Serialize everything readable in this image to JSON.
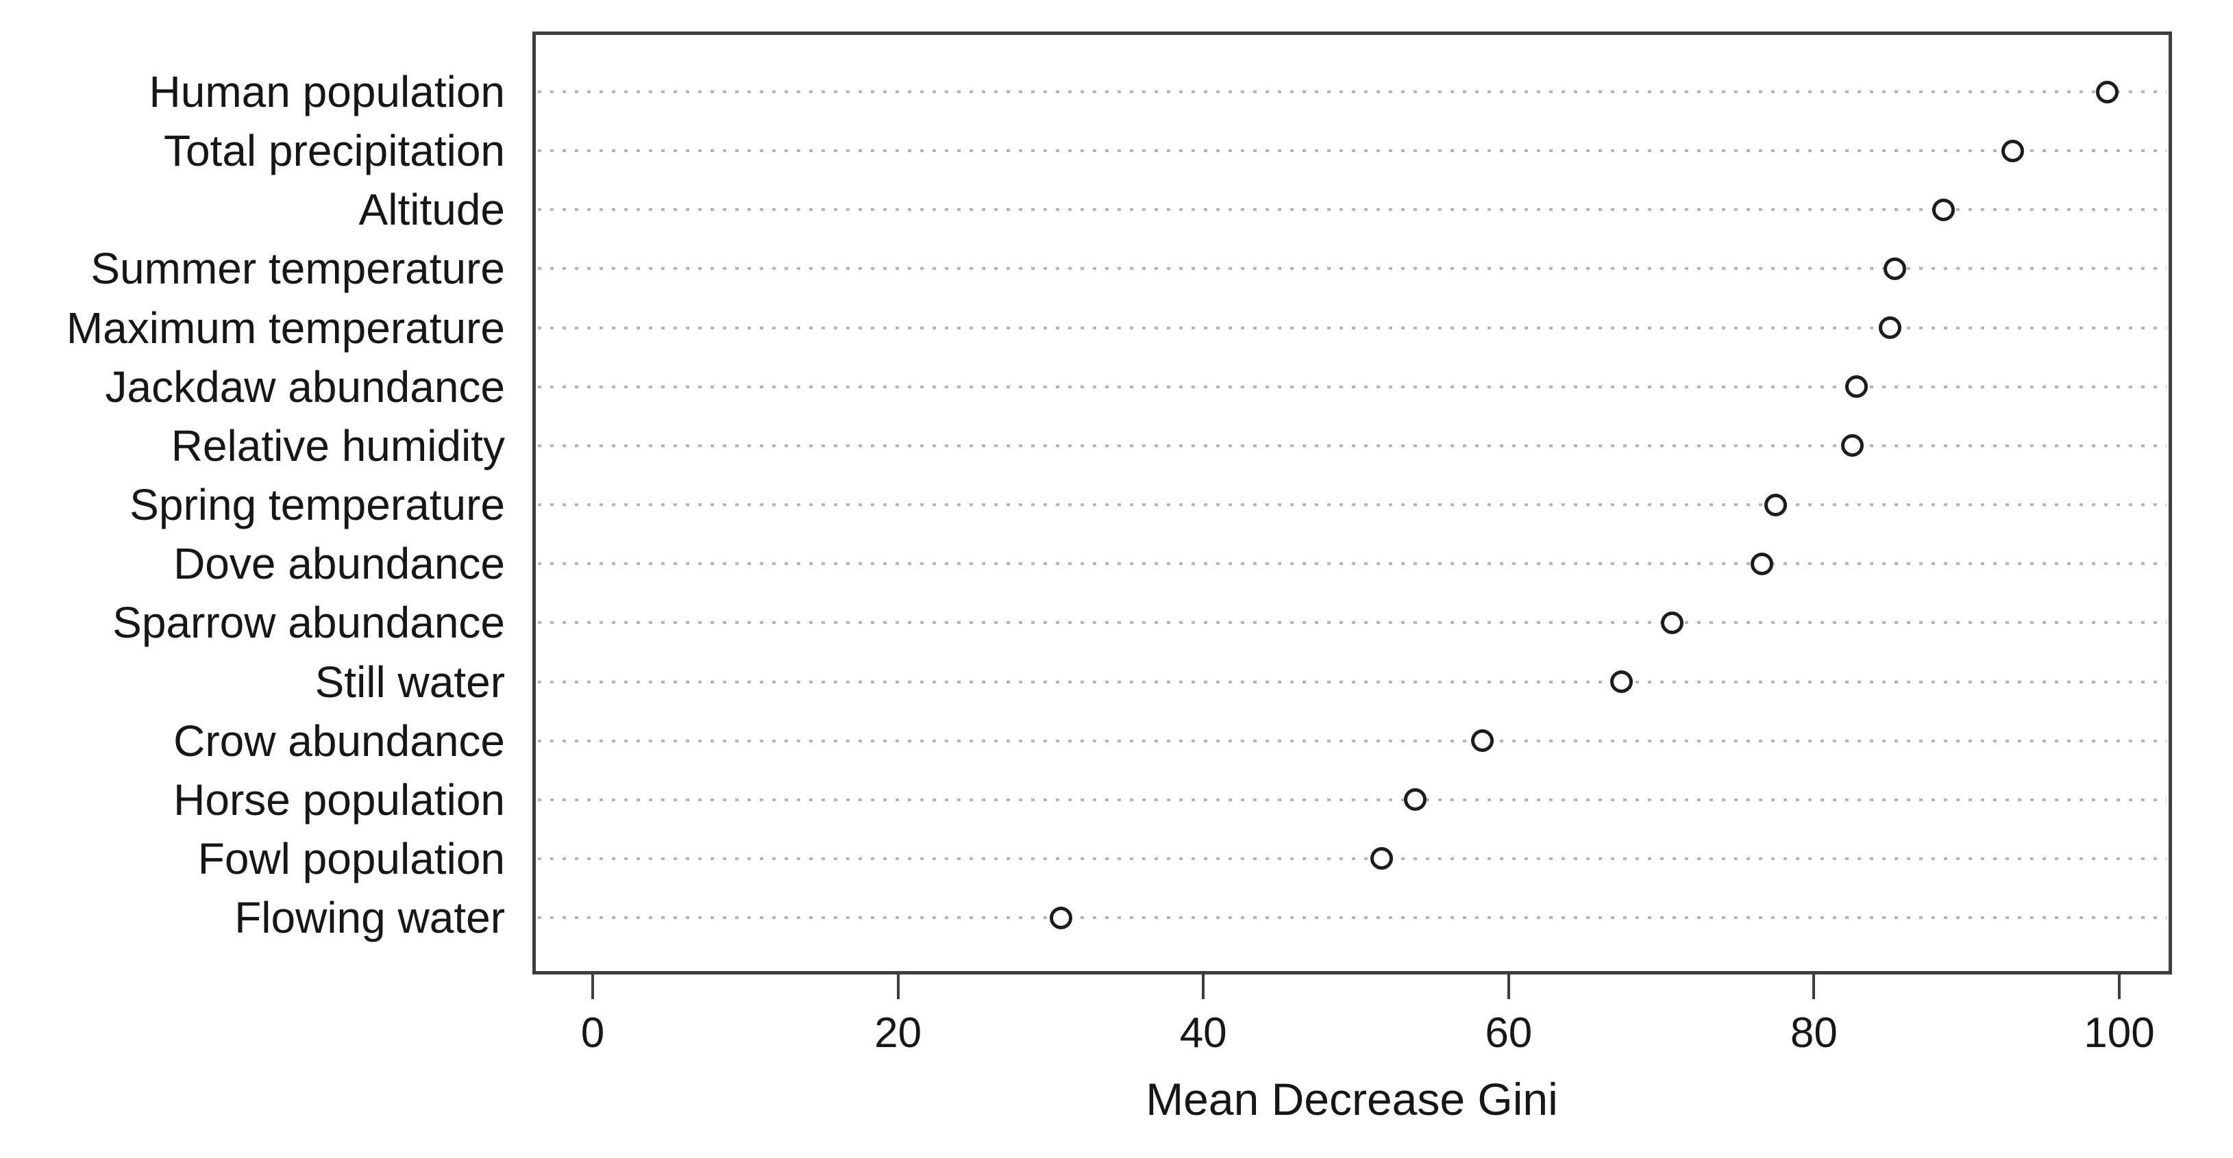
{
  "chart_data": {
    "type": "scatter",
    "subtype": "dot-plot-variable-importance",
    "title": "",
    "xlabel": "Mean Decrease Gini",
    "ylabel": "",
    "categories": [
      "Human population",
      "Total precipitation",
      "Altitude",
      "Summer temperature",
      "Maximum temperature",
      "Jackdaw abundance",
      "Relative humidity",
      "Spring temperature",
      "Dove abundance",
      "Sparrow abundance",
      "Still water",
      "Crow abundance",
      "Horse population",
      "Fowl population",
      "Flowing water"
    ],
    "values": [
      99.2,
      93.0,
      88.5,
      85.3,
      85.0,
      82.8,
      82.5,
      77.5,
      76.6,
      70.7,
      67.4,
      58.3,
      53.9,
      51.7,
      30.7
    ],
    "x_ticks": [
      0,
      20,
      40,
      60,
      80,
      100
    ],
    "xlim": [
      -4,
      103.4
    ],
    "grid": "horizontal-dotted",
    "legend": "none",
    "marker": "open-circle"
  },
  "colors": {
    "background": "#ffffff",
    "axis_box": "#3e3e3e",
    "gridline": "#b4b4b4",
    "marker_stroke": "#1c1c1c",
    "text": "#161616"
  }
}
